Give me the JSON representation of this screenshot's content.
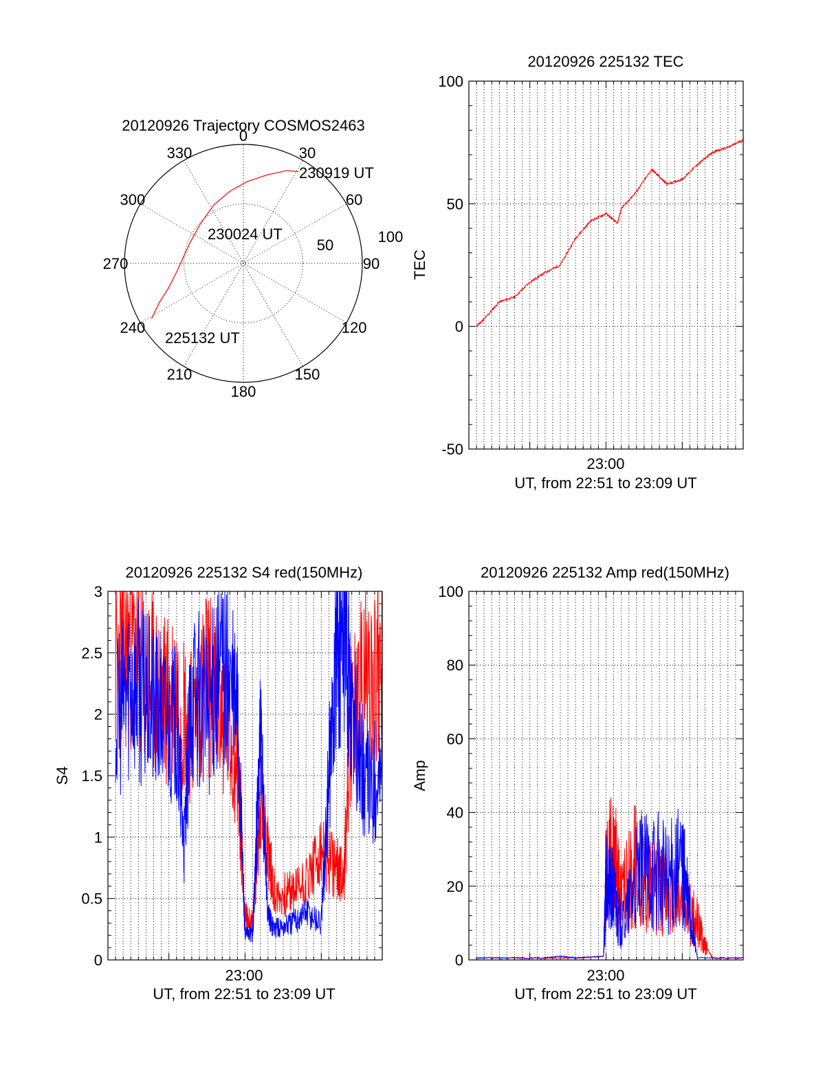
{
  "colors": {
    "red_trace": "#ff0000",
    "blue_trace": "#0000ff",
    "axis": "#000000"
  },
  "chart_data": [
    {
      "type": "polar",
      "title": "20120926 Trajectory COSMOS2463",
      "azimuth_labels": [
        "0",
        "30",
        "60",
        "90",
        "120",
        "150",
        "180",
        "210",
        "240",
        "270",
        "300",
        "330"
      ],
      "radial_labels": [
        "50",
        "100"
      ],
      "rlim": [
        0,
        100
      ],
      "grid": true,
      "trajectory": [
        {
          "azimuth": 239,
          "r": 90
        },
        {
          "azimuth": 245,
          "r": 78
        },
        {
          "azimuth": 252,
          "r": 66
        },
        {
          "azimuth": 262,
          "r": 57
        },
        {
          "azimuth": 275,
          "r": 51
        },
        {
          "azimuth": 292,
          "r": 48
        },
        {
          "azimuth": 312,
          "r": 49
        },
        {
          "azimuth": 333,
          "r": 55
        },
        {
          "azimuth": 350,
          "r": 62
        },
        {
          "azimuth": 3,
          "r": 69
        },
        {
          "azimuth": 15,
          "r": 77
        },
        {
          "azimuth": 25,
          "r": 86
        },
        {
          "azimuth": 31,
          "r": 90
        }
      ],
      "annotations": [
        {
          "text": "225132 UT",
          "at": "trajectory start"
        },
        {
          "text": "230024 UT",
          "at": "closest approach"
        },
        {
          "text": "230919 UT",
          "at": "trajectory end"
        }
      ]
    },
    {
      "type": "line",
      "title": "20120926 225132 TEC",
      "ylabel": "TEC",
      "xlabel": "UT, from 22:51 to 23:09 UT",
      "x_tick_label": "23:00",
      "xlim": [
        "22:51",
        "23:09"
      ],
      "ylim": [
        -50,
        100
      ],
      "yticks": [
        -50,
        0,
        50,
        100
      ],
      "grid": true,
      "series": [
        {
          "color": "red",
          "x": [
            "22:51:30",
            "22:52:00",
            "22:53:00",
            "22:54:00",
            "22:55:00",
            "22:56:00",
            "22:57:00",
            "22:58:00",
            "22:59:00",
            "23:00:00",
            "23:00:45",
            "23:01:00",
            "23:02:00",
            "23:03:00",
            "23:03:30",
            "23:04:00",
            "23:05:00",
            "23:06:00",
            "23:07:00",
            "23:08:00",
            "23:09:00"
          ],
          "y": [
            0,
            3,
            10,
            12,
            18,
            22,
            25,
            36,
            43,
            46,
            42,
            48,
            55,
            64,
            61,
            58,
            60,
            66,
            71,
            73,
            76
          ]
        }
      ]
    },
    {
      "type": "line",
      "title": "20120926 225132 S4 red(150MHz)",
      "ylabel": "S4",
      "xlabel": "UT, from 22:51 to 23:09 UT",
      "x_tick_label": "23:00",
      "xlim": [
        "22:51",
        "23:09"
      ],
      "ylim": [
        0,
        3
      ],
      "yticks": [
        "0",
        "0.5",
        "1",
        "1.5",
        "2",
        "2.5",
        "3"
      ],
      "grid": true,
      "series": [
        {
          "color": "red",
          "x": [
            "22:51:30",
            "22:52:30",
            "22:53:30",
            "22:54:30",
            "22:55:30",
            "22:56:30",
            "22:57:30",
            "22:58:30",
            "22:59:30",
            "23:00:00",
            "23:00:30",
            "23:01:00",
            "23:01:30",
            "23:02:00",
            "23:03:00",
            "23:04:00",
            "23:05:00",
            "23:06:00",
            "23:06:30",
            "23:07:00",
            "23:08:00",
            "23:09:00"
          ],
          "y": [
            2.4,
            2.6,
            2.3,
            2.1,
            2.2,
            1.9,
            2.3,
            2.0,
            1.6,
            0.35,
            0.3,
            1.3,
            0.9,
            0.5,
            0.55,
            0.65,
            0.85,
            0.75,
            0.7,
            2.0,
            2.3,
            2.4
          ]
        },
        {
          "color": "blue",
          "x": [
            "22:51:30",
            "22:52:30",
            "22:53:30",
            "22:54:30",
            "22:55:30",
            "22:56:00",
            "22:56:30",
            "22:57:30",
            "22:58:30",
            "22:59:30",
            "23:00:00",
            "23:00:30",
            "23:01:00",
            "23:01:30",
            "23:02:00",
            "23:03:00",
            "23:04:00",
            "23:05:00",
            "23:05:30",
            "23:06:00",
            "23:06:30",
            "23:07:00",
            "23:08:00",
            "23:09:00"
          ],
          "y": [
            1.9,
            2.3,
            2.1,
            2.0,
            1.9,
            0.9,
            2.2,
            2.0,
            2.4,
            2.0,
            0.2,
            0.22,
            1.8,
            0.35,
            0.25,
            0.3,
            0.4,
            0.3,
            1.5,
            2.5,
            2.8,
            2.0,
            1.4,
            1.5
          ]
        }
      ]
    },
    {
      "type": "line",
      "title": "20120926 225132 Amp red(150MHz)",
      "ylabel": "Amp",
      "xlabel": "UT, from 22:51 to 23:09 UT",
      "x_tick_label": "23:00",
      "xlim": [
        "22:51",
        "23:09"
      ],
      "ylim": [
        0,
        100
      ],
      "yticks": [
        0,
        20,
        40,
        60,
        80,
        100
      ],
      "grid": true,
      "series": [
        {
          "color": "red",
          "x": [
            "22:51:30",
            "22:55:00",
            "22:58:00",
            "22:59:50",
            "23:00:00",
            "23:00:30",
            "23:01:00",
            "23:02:00",
            "23:03:00",
            "23:04:00",
            "23:05:00",
            "23:06:00",
            "23:06:30",
            "23:07:00",
            "23:09:00"
          ],
          "y": [
            0.5,
            0.5,
            0.5,
            1,
            25,
            30,
            15,
            28,
            20,
            18,
            15,
            10,
            4,
            0.5,
            0.5
          ]
        },
        {
          "color": "blue",
          "x": [
            "22:51:30",
            "22:56:00",
            "22:57:00",
            "22:58:00",
            "22:59:50",
            "23:00:00",
            "23:00:30",
            "23:01:00",
            "23:02:00",
            "23:03:00",
            "23:04:00",
            "23:05:00",
            "23:05:30",
            "23:06:00",
            "23:09:00"
          ],
          "y": [
            0.5,
            0.5,
            1,
            0.5,
            1,
            20,
            18,
            8,
            22,
            25,
            22,
            25,
            12,
            0.5,
            0.5
          ]
        }
      ]
    }
  ]
}
